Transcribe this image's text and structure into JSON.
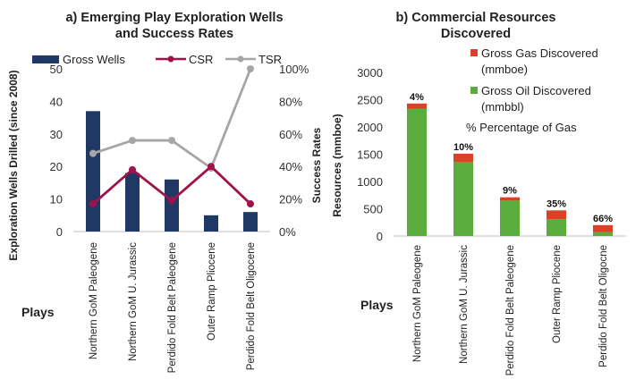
{
  "chart_data": [
    {
      "type": "bar",
      "title_line1": "a) Emerging Play Exploration Wells",
      "title_line2": "and Success Rates",
      "categories": [
        "Northern GoM Paleogene",
        "Northern GoM U. Jurassic",
        "Perdido Fold Belt Paleogene",
        "Outer Ramp Pliocene",
        "Perdido Fold Belt Oligocene"
      ],
      "xlabel": "Plays",
      "ylabel": "Exploration Wells Drilled (since 2008)",
      "y2label": "Success Rates",
      "ylim": [
        0,
        50
      ],
      "y2lim": [
        0,
        100
      ],
      "yticks": [
        "0",
        "10",
        "20",
        "30",
        "40",
        "50"
      ],
      "y2ticks": [
        "0%",
        "20%",
        "40%",
        "60%",
        "80%",
        "100%"
      ],
      "series": [
        {
          "name": "Gross Wells",
          "kind": "bar",
          "axis": "left",
          "color": "#1f3864",
          "values": [
            37,
            18,
            16,
            5,
            6
          ]
        },
        {
          "name": "CSR",
          "kind": "line",
          "axis": "right",
          "color": "#a0124c",
          "values": [
            17,
            38,
            19,
            40,
            17
          ]
        },
        {
          "name": "TSR",
          "kind": "line",
          "axis": "right",
          "color": "#a6a6a6",
          "values": [
            48,
            56,
            56,
            39,
            100
          ]
        }
      ],
      "legend": "top"
    },
    {
      "type": "bar",
      "stacked": true,
      "title_line1": "b) Commercial Resources",
      "title_line2": "Discovered",
      "categories": [
        "Northern GoM Paleogene",
        "Northern GoM U. Jurassic",
        "Perdido Fold Belt Paleogene",
        "Outer Ramp Pliocene",
        "Perdido Fold Belt Oligocne"
      ],
      "xlabel": "Plays",
      "ylabel": "Resources (mmboe)",
      "ylim": [
        0,
        3000
      ],
      "yticks": [
        "0",
        "500",
        "1000",
        "1500",
        "2000",
        "2500",
        "3000"
      ],
      "series": [
        {
          "name": "Gross Oil Discovered",
          "unit_line": "(mmbbl)",
          "color": "#5aac3c",
          "values": [
            2330,
            1360,
            650,
            310,
            70
          ]
        },
        {
          "name": "Gross Gas Discovered",
          "unit_line": "(mmboe)",
          "color": "#d94226",
          "values": [
            100,
            150,
            60,
            160,
            130
          ]
        }
      ],
      "data_labels": [
        "4%",
        "10%",
        "9%",
        "35%",
        "66%"
      ],
      "legend_note": "%  Percentage of Gas",
      "legend": "top-right"
    }
  ]
}
